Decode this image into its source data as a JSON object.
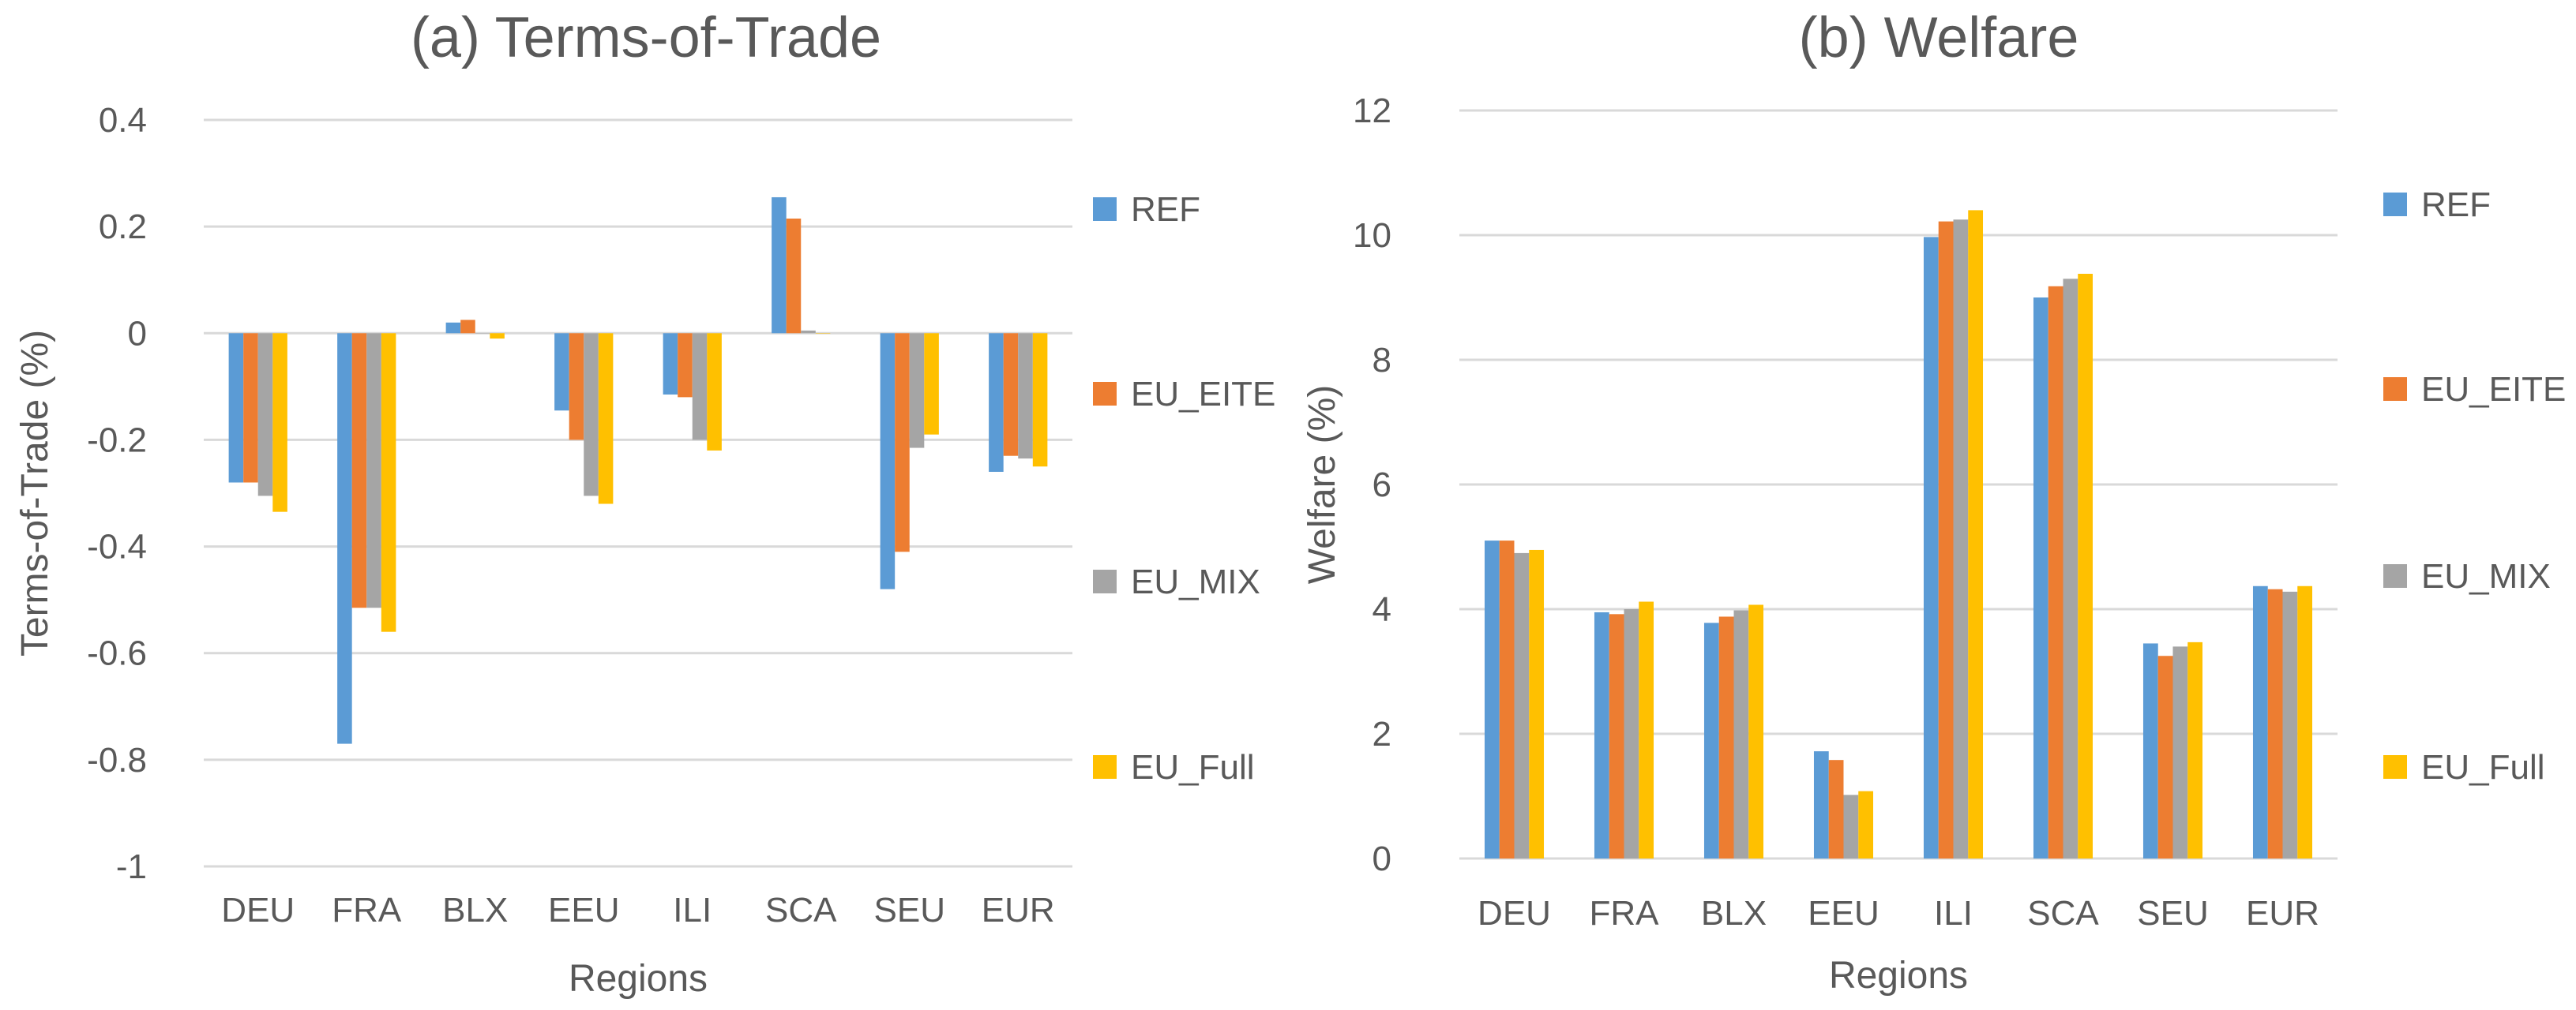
{
  "chart_data": [
    {
      "type": "bar",
      "title": "(a) Terms-of-Trade",
      "xlabel": "Regions",
      "ylabel": "Terms-of-Trade (%)",
      "ylim": [
        -1,
        0.4
      ],
      "yticks": [
        0.4,
        0.2,
        0,
        -0.2,
        -0.4,
        -0.6,
        -0.8,
        -1
      ],
      "ytick_labels": [
        "0.4",
        "0.2",
        "0",
        "-0.2",
        "-0.4",
        "-0.6",
        "-0.8",
        "-1"
      ],
      "grid": true,
      "legend_position": "right",
      "categories": [
        "DEU",
        "FRA",
        "BLX",
        "EEU",
        "ILI",
        "SCA",
        "SEU",
        "EUR"
      ],
      "series": [
        {
          "name": "REF",
          "color": "#5b9bd5",
          "values": [
            -0.28,
            -0.77,
            0.02,
            -0.145,
            -0.115,
            0.255,
            -0.48,
            -0.26
          ]
        },
        {
          "name": "EU_EITE",
          "color": "#ed7d31",
          "values": [
            -0.28,
            -0.515,
            0.025,
            -0.2,
            -0.12,
            0.215,
            -0.41,
            -0.23
          ]
        },
        {
          "name": "EU_MIX",
          "color": "#a5a5a5",
          "values": [
            -0.305,
            -0.515,
            0.0,
            -0.305,
            -0.2,
            0.005,
            -0.215,
            -0.235
          ]
        },
        {
          "name": "EU_Full",
          "color": "#ffc000",
          "values": [
            -0.335,
            -0.56,
            -0.01,
            -0.32,
            -0.22,
            0.0,
            -0.19,
            -0.25
          ]
        }
      ]
    },
    {
      "type": "bar",
      "title": "(b) Welfare",
      "xlabel": "Regions",
      "ylabel": "Welfare (%)",
      "ylim": [
        0,
        12
      ],
      "yticks": [
        12,
        10,
        8,
        6,
        4,
        2,
        0
      ],
      "ytick_labels": [
        "12",
        "10",
        "8",
        "6",
        "4",
        "2",
        "0"
      ],
      "grid": true,
      "legend_position": "right",
      "categories": [
        "DEU",
        "FRA",
        "BLX",
        "EEU",
        "ILI",
        "SCA",
        "SEU",
        "EUR"
      ],
      "series": [
        {
          "name": "REF",
          "color": "#5b9bd5",
          "values": [
            5.1,
            3.95,
            3.78,
            1.72,
            9.97,
            9.0,
            3.45,
            4.37
          ]
        },
        {
          "name": "EU_EITE",
          "color": "#ed7d31",
          "values": [
            5.1,
            3.92,
            3.88,
            1.58,
            10.22,
            9.18,
            3.25,
            4.32
          ]
        },
        {
          "name": "EU_MIX",
          "color": "#a5a5a5",
          "values": [
            4.9,
            4.0,
            3.98,
            1.02,
            10.25,
            9.3,
            3.4,
            4.28
          ]
        },
        {
          "name": "EU_Full",
          "color": "#ffc000",
          "values": [
            4.95,
            4.12,
            4.07,
            1.08,
            10.4,
            9.38,
            3.47,
            4.37
          ]
        }
      ]
    }
  ]
}
